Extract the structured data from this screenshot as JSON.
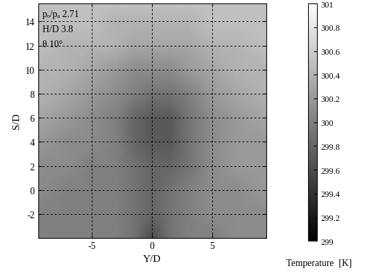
{
  "chart_data": {
    "type": "heatmap",
    "xlabel": "Y/D",
    "ylabel": "S/D",
    "annotations": [
      "pₒ/pₐ 2.71",
      "H/D 3.8",
      "θ 10°"
    ],
    "x": [
      -9.5,
      -7,
      -5,
      -3,
      -1.5,
      0,
      1.5,
      3,
      5,
      7,
      9.5
    ],
    "y": [
      -4,
      -2,
      0,
      2,
      4,
      6,
      8,
      10,
      12,
      14,
      15.5
    ],
    "cells": [
      [
        300.0,
        300.0,
        300.0,
        300.0,
        299.9,
        299.6,
        299.9,
        300.0,
        300.0,
        300.1,
        300.1
      ],
      [
        300.0,
        300.0,
        300.0,
        300.0,
        299.9,
        299.8,
        299.9,
        300.0,
        300.1,
        300.1,
        300.1
      ],
      [
        300.1,
        300.0,
        300.0,
        300.0,
        299.9,
        299.8,
        299.9,
        300.0,
        300.1,
        300.1,
        300.2
      ],
      [
        300.1,
        300.1,
        300.0,
        300.0,
        299.9,
        299.8,
        299.8,
        299.9,
        300.1,
        300.2,
        300.2
      ],
      [
        300.2,
        300.1,
        300.1,
        300.0,
        299.8,
        299.7,
        299.7,
        299.9,
        300.1,
        300.2,
        300.2
      ],
      [
        300.3,
        300.2,
        300.1,
        300.0,
        299.8,
        299.7,
        299.7,
        299.9,
        300.1,
        300.2,
        300.3
      ],
      [
        300.4,
        300.3,
        300.2,
        300.1,
        300.0,
        299.9,
        299.9,
        300.0,
        300.2,
        300.3,
        300.4
      ],
      [
        300.4,
        300.4,
        300.3,
        300.2,
        300.1,
        300.1,
        300.1,
        300.2,
        300.3,
        300.4,
        300.4
      ],
      [
        300.5,
        300.4,
        300.4,
        300.4,
        300.3,
        300.3,
        300.3,
        300.3,
        300.4,
        300.4,
        300.5
      ],
      [
        300.5,
        300.5,
        300.5,
        300.4,
        300.4,
        300.4,
        300.4,
        300.4,
        300.5,
        300.5,
        300.5
      ],
      [
        300.5,
        300.5,
        300.5,
        300.5,
        300.5,
        300.5,
        300.5,
        300.5,
        300.5,
        300.5,
        300.5
      ]
    ],
    "xlim": [
      -9.5,
      9.5
    ],
    "xticks": [
      -5,
      0,
      5
    ],
    "ylim": [
      -4,
      15.5
    ],
    "yticks": [
      -2,
      0,
      2,
      4,
      6,
      8,
      10,
      12,
      14
    ],
    "grid": true,
    "color_range": [
      299,
      301
    ],
    "color_ticks": [
      299,
      299.2,
      299.4,
      299.6,
      299.8,
      300,
      300.2,
      300.4,
      300.6,
      300.8,
      301
    ],
    "color_label": "Temperature  [K]"
  }
}
